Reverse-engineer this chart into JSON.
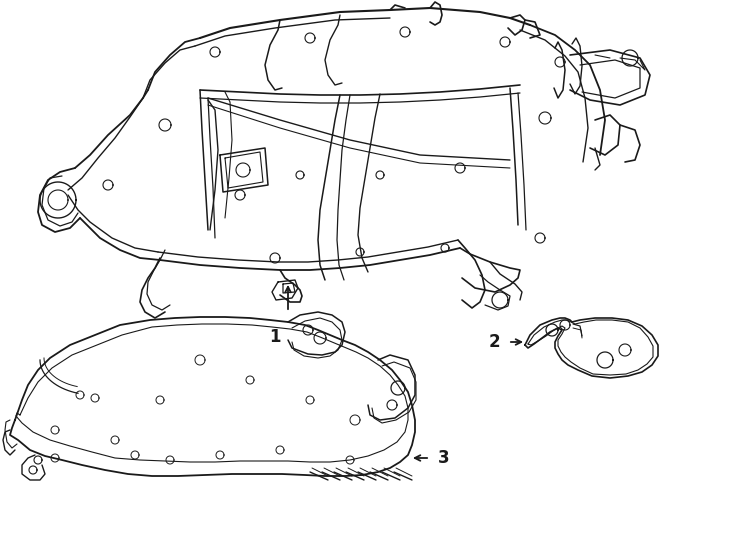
{
  "background_color": "#ffffff",
  "line_color": "#1a1a1a",
  "line_width": 1.0,
  "fig_width": 7.34,
  "fig_height": 5.4,
  "dpi": 100
}
